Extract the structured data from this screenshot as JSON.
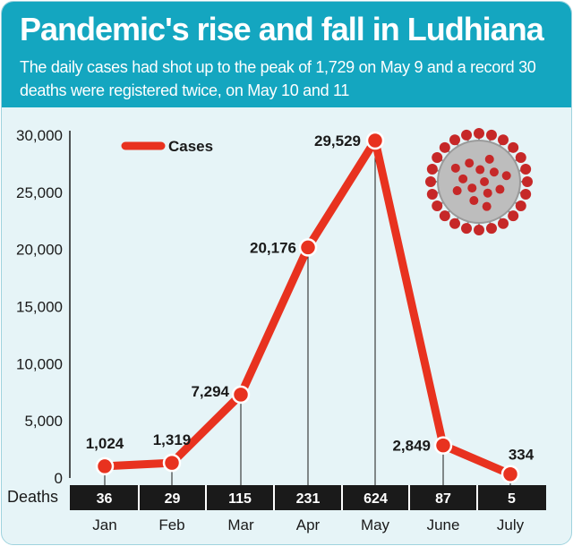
{
  "header": {
    "title": "Pandemic's rise and fall in Ludhiana",
    "subtitle": "The daily cases had shot up to the peak of 1,729 on May 9 and a record 30 deaths were registered twice, on May 10 and 11"
  },
  "colors": {
    "header_bg": "#14a6c0",
    "chart_bg": "#e6f4f7",
    "line": "#e8321f",
    "deaths_bar": "#1a1a1a"
  },
  "chart_data": {
    "type": "line",
    "categories": [
      "Jan",
      "Feb",
      "Mar",
      "Apr",
      "May",
      "June",
      "July"
    ],
    "series": [
      {
        "name": "Cases",
        "values": [
          1024,
          1319,
          7294,
          20176,
          29529,
          2849,
          334
        ]
      }
    ],
    "data_labels": [
      "1,024",
      "1,319",
      "7,294",
      "20,176",
      "29,529",
      "2,849",
      "334"
    ],
    "yticks": [
      "0",
      "5,000",
      "10,000",
      "15,000",
      "20,000",
      "25,000",
      "30,000"
    ],
    "ylim": [
      0,
      30000
    ],
    "legend": "top-left",
    "grid": false,
    "deaths": {
      "label": "Deaths",
      "values": [
        "36",
        "29",
        "115",
        "231",
        "624",
        "87",
        "5"
      ]
    }
  }
}
